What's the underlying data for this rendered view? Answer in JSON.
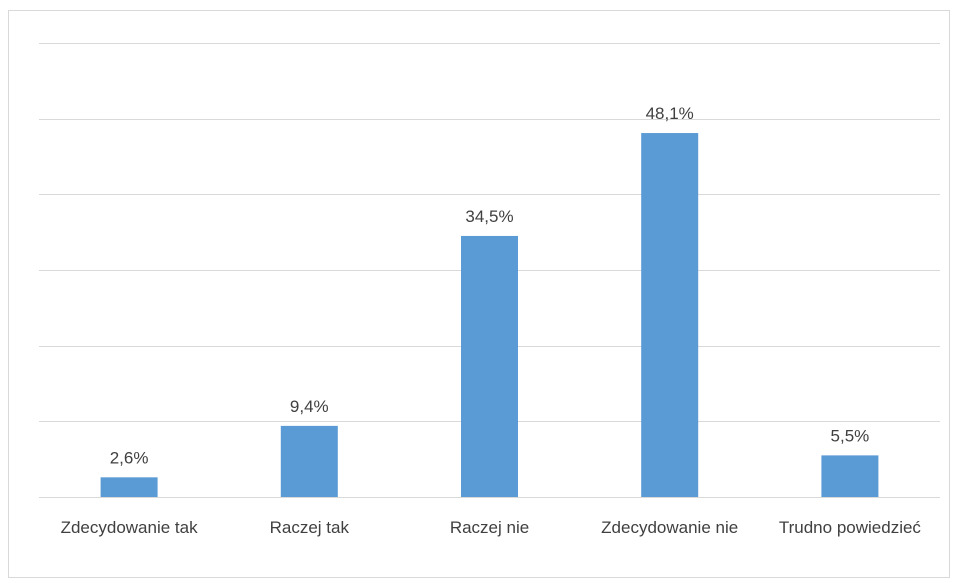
{
  "chart_data": {
    "type": "bar",
    "categories": [
      "Zdecydowanie tak",
      "Raczej tak",
      "Raczej nie",
      "Zdecydowanie nie",
      "Trudno powiedzieć"
    ],
    "values": [
      2.6,
      9.4,
      34.5,
      48.1,
      5.5
    ],
    "value_labels": [
      "2,6%",
      "9,4%",
      "34,5%",
      "48,1%",
      "5,5%"
    ],
    "color": "#5b9bd5",
    "ylim": [
      0,
      60
    ],
    "yticks": [
      0,
      10,
      20,
      30,
      40,
      50,
      60
    ],
    "grid": true
  }
}
